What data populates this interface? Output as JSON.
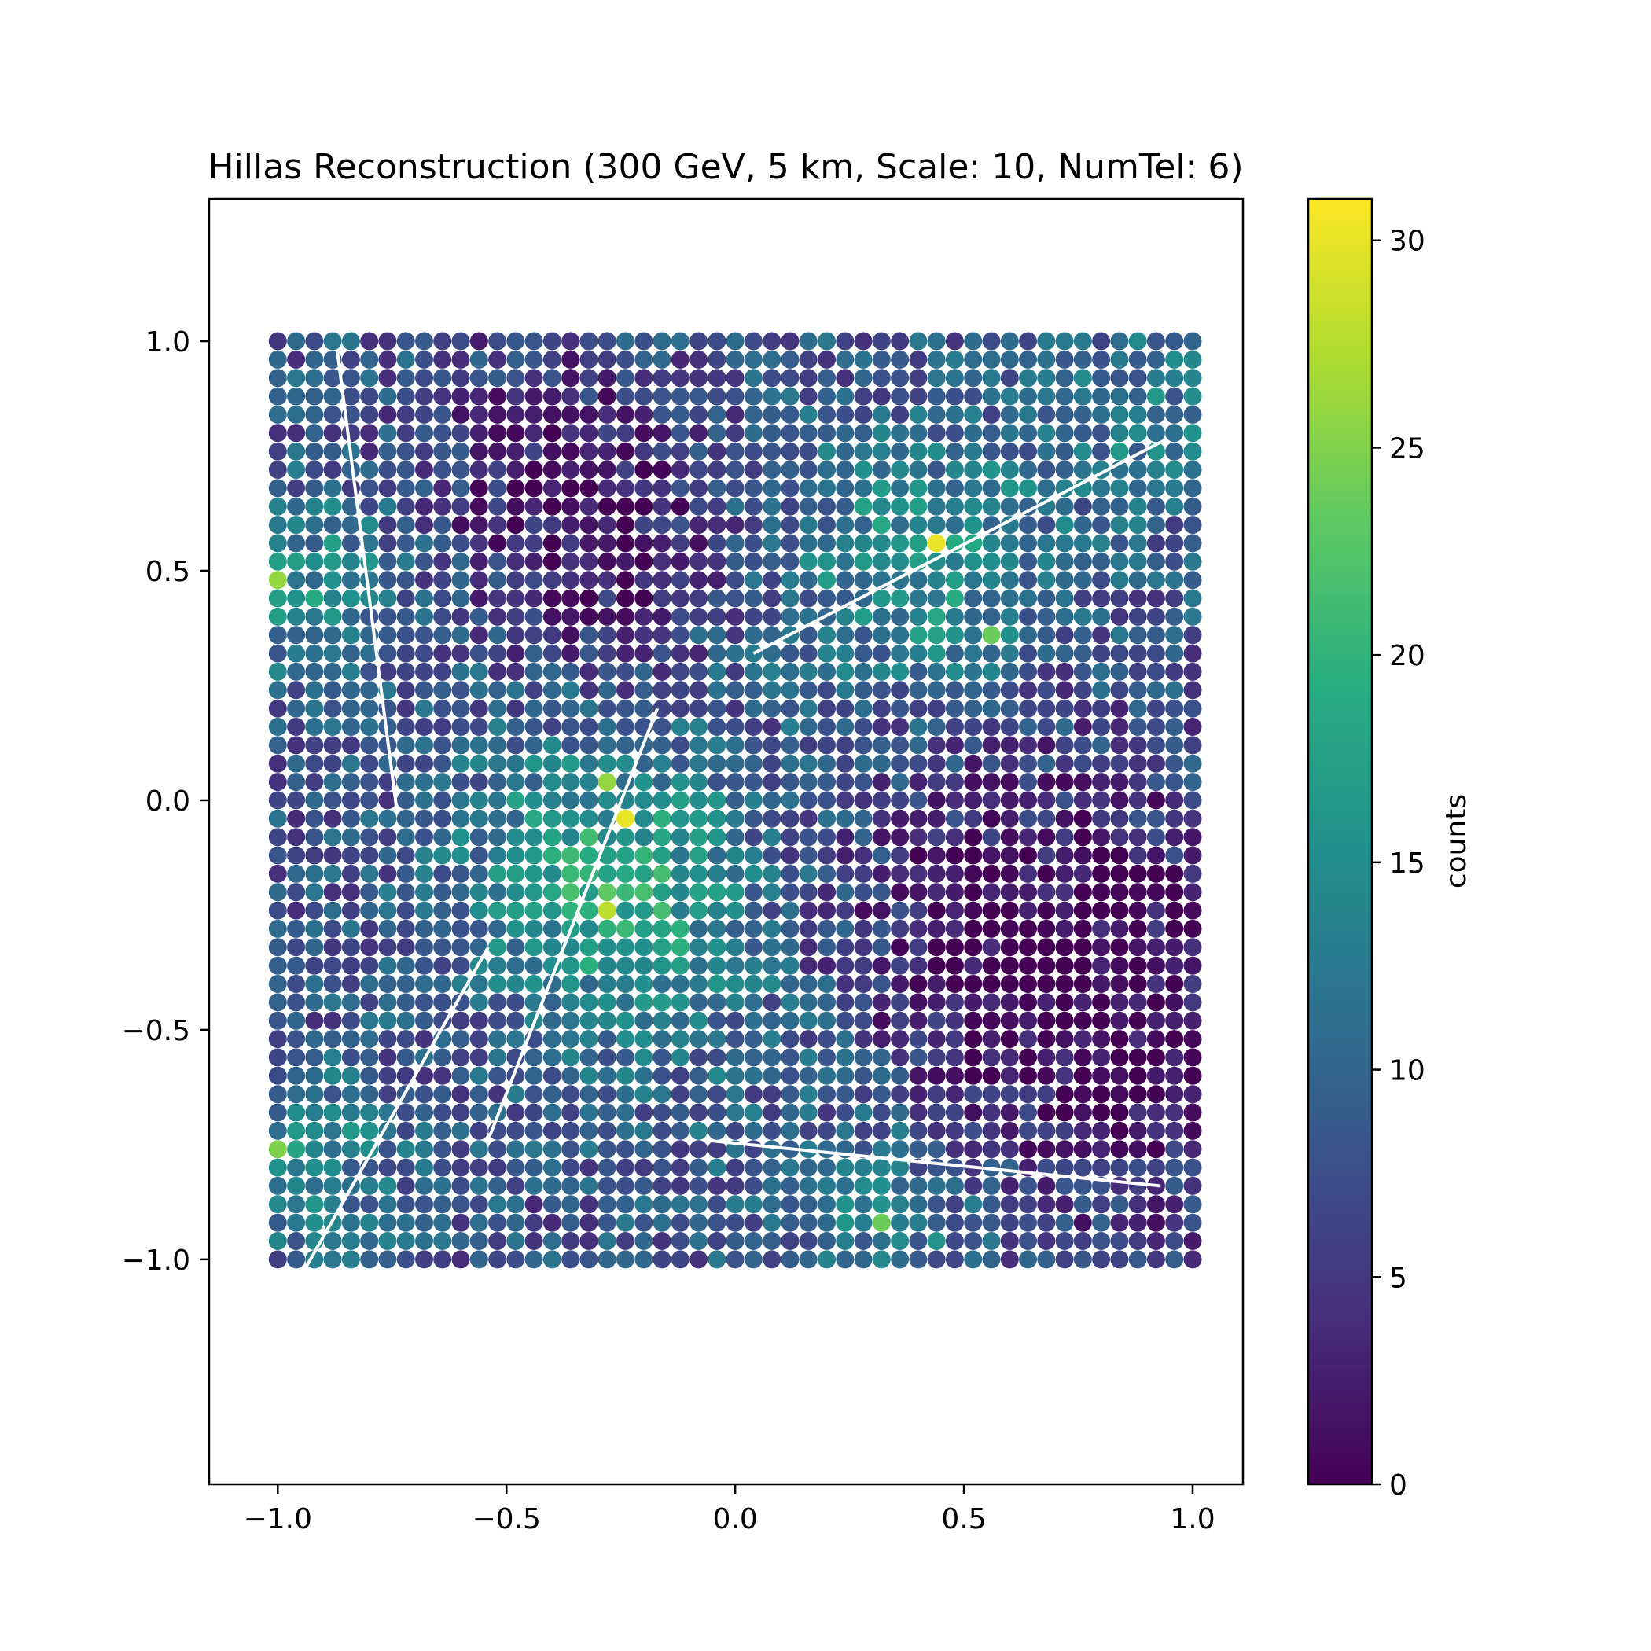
{
  "chart_data": {
    "type": "scatter",
    "title": "Hillas Reconstruction (300 GeV, 5 km, Scale: 10, NumTel: 6)",
    "xlabel": "",
    "ylabel": "",
    "xlim": [
      -1.15,
      1.11
    ],
    "ylim": [
      -1.49,
      1.31
    ],
    "x_ticks": [
      -1.0,
      -0.5,
      0.0,
      0.5,
      1.0
    ],
    "x_tick_labels": [
      "−1.0",
      "−0.5",
      "0.0",
      "0.5",
      "1.0"
    ],
    "y_ticks": [
      -1.0,
      -0.5,
      0.0,
      0.5,
      1.0
    ],
    "y_tick_labels": [
      "−1.0",
      "−0.5",
      "0.0",
      "0.5",
      "1.0"
    ],
    "grid": false,
    "colormap": "viridis",
    "grid_points": {
      "x_range": [
        -1.0,
        1.0
      ],
      "y_range": [
        -1.0,
        1.0
      ],
      "n_per_axis": 51,
      "counts_description": "Counts per grid point are estimated from the image; each value is a count on the colorbar scale 0-31."
    },
    "hotspots": [
      {
        "x": 0.43,
        "y": 0.55,
        "count": 30
      },
      {
        "x": -0.26,
        "y": -0.06,
        "count": 30
      },
      {
        "x": -0.3,
        "y": -0.26,
        "count": 28
      },
      {
        "x": -1.0,
        "y": 0.47,
        "count": 26
      },
      {
        "x": -0.3,
        "y": 0.03,
        "count": 26
      },
      {
        "x": -1.0,
        "y": -0.75,
        "count": 25
      },
      {
        "x": 0.55,
        "y": 0.35,
        "count": 24
      },
      {
        "x": 0.3,
        "y": -0.92,
        "count": 24
      }
    ],
    "lines": [
      {
        "x": [
          -0.87,
          -0.74
        ],
        "y": [
          0.98,
          -0.02
        ]
      },
      {
        "x": [
          0.04,
          0.93
        ],
        "y": [
          0.32,
          0.78
        ]
      },
      {
        "x": [
          -0.17,
          -0.54
        ],
        "y": [
          0.2,
          -0.74
        ]
      },
      {
        "x": [
          -0.54,
          -0.94
        ],
        "y": [
          -0.32,
          -1.02
        ]
      },
      {
        "x": [
          -0.07,
          0.93
        ],
        "y": [
          -0.74,
          -0.84
        ]
      }
    ],
    "colorbar": {
      "label": "counts",
      "min": 0,
      "max": 31,
      "ticks": [
        0,
        5,
        10,
        15,
        20,
        25,
        30
      ],
      "tick_labels": [
        "0",
        "5",
        "10",
        "15",
        "20",
        "25",
        "30"
      ]
    }
  }
}
